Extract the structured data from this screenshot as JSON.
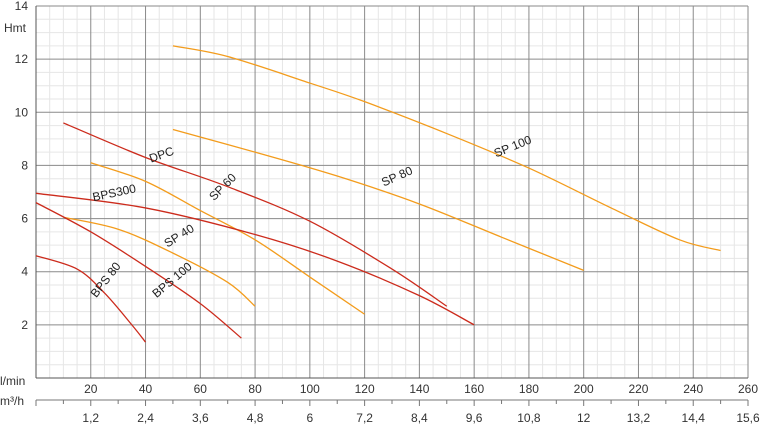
{
  "chart_data": {
    "type": "line",
    "ylabel": "Hmt",
    "xlabel": "l/min",
    "x2label": "m³/h",
    "xlim": [
      0,
      260
    ],
    "ylim": [
      0,
      14
    ],
    "grid": true,
    "x_ticks": [
      "20",
      "40",
      "60",
      "80",
      "100",
      "120",
      "140",
      "160",
      "180",
      "200",
      "220",
      "240",
      "260"
    ],
    "y_ticks": [
      "2",
      "4",
      "6",
      "8",
      "10",
      "12",
      "14"
    ],
    "x2_ticks": [
      "1,2",
      "2,4",
      "3,6",
      "4,8",
      "6",
      "7,2",
      "8,4",
      "9,6",
      "10,8",
      "12",
      "13,2",
      "14,4",
      "15,6"
    ],
    "series": [
      {
        "name": "SP 100",
        "color": "#f39c1c",
        "points": [
          [
            50,
            12.5
          ],
          [
            70,
            12.1
          ],
          [
            100,
            11.1
          ],
          [
            120,
            10.4
          ],
          [
            150,
            9.2
          ],
          [
            180,
            7.9
          ],
          [
            210,
            6.4
          ],
          [
            235,
            5.2
          ],
          [
            250,
            4.8
          ]
        ],
        "label_at": [
          168,
          8.3
        ],
        "label_angle": -22
      },
      {
        "name": "SP 80",
        "color": "#f39c1c",
        "points": [
          [
            50,
            9.35
          ],
          [
            80,
            8.5
          ],
          [
            110,
            7.6
          ],
          [
            140,
            6.55
          ],
          [
            170,
            5.3
          ],
          [
            200,
            4.05
          ]
        ],
        "label_at": [
          127,
          7.2
        ],
        "label_angle": -24
      },
      {
        "name": "SP 60",
        "color": "#f39c1c",
        "points": [
          [
            20,
            8.1
          ],
          [
            40,
            7.4
          ],
          [
            60,
            6.3
          ],
          [
            80,
            5.2
          ],
          [
            100,
            3.8
          ],
          [
            120,
            2.4
          ]
        ],
        "label_at": [
          65,
          6.65
        ],
        "label_angle": -45
      },
      {
        "name": "SP 40",
        "color": "#f39c1c",
        "points": [
          [
            10,
            6.05
          ],
          [
            30,
            5.6
          ],
          [
            50,
            4.7
          ],
          [
            70,
            3.6
          ],
          [
            80,
            2.7
          ]
        ],
        "label_at": [
          48,
          4.9
        ],
        "label_angle": -32
      },
      {
        "name": "DPC",
        "color": "#cc2b1c",
        "points": [
          [
            10,
            9.6
          ],
          [
            40,
            8.3
          ],
          [
            70,
            7.2
          ],
          [
            100,
            5.9
          ],
          [
            130,
            4.1
          ],
          [
            150,
            2.7
          ]
        ],
        "label_at": [
          42,
          8.1
        ],
        "label_angle": -20
      },
      {
        "name": "BPS300",
        "color": "#cc2b1c",
        "points": [
          [
            0,
            6.95
          ],
          [
            40,
            6.4
          ],
          [
            80,
            5.4
          ],
          [
            110,
            4.4
          ],
          [
            140,
            3.1
          ],
          [
            160,
            2.0
          ]
        ],
        "label_at": [
          21,
          6.65
        ],
        "label_angle": -12
      },
      {
        "name": "BPS 100",
        "color": "#cc2b1c",
        "points": [
          [
            0,
            6.6
          ],
          [
            20,
            5.5
          ],
          [
            40,
            4.2
          ],
          [
            60,
            2.8
          ],
          [
            75,
            1.5
          ]
        ],
        "label_at": [
          44,
          3.0
        ],
        "label_angle": -40
      },
      {
        "name": "BPS 80",
        "color": "#cc2b1c",
        "points": [
          [
            0,
            4.6
          ],
          [
            15,
            4.1
          ],
          [
            25,
            3.2
          ],
          [
            35,
            2.0
          ],
          [
            40,
            1.35
          ]
        ],
        "label_at": [
          22,
          3.0
        ],
        "label_angle": -52
      }
    ]
  }
}
